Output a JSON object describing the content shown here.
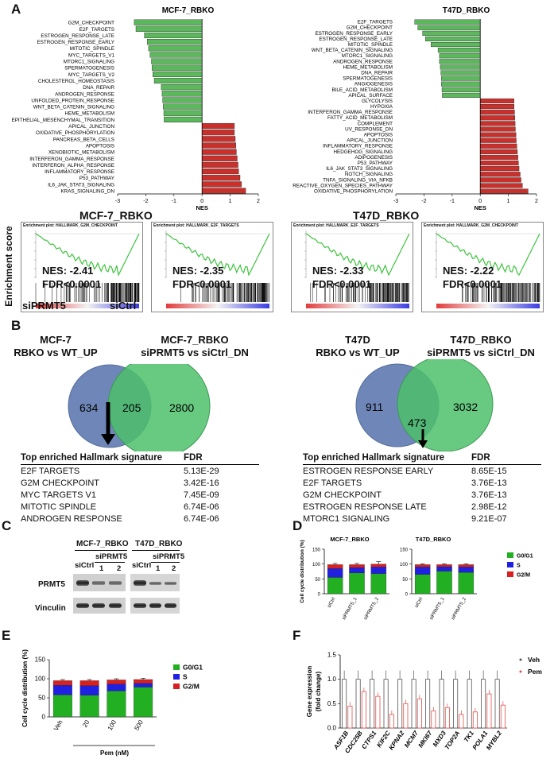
{
  "panels": {
    "A": "A",
    "B": "B",
    "C": "C",
    "D": "D",
    "E": "E",
    "F": "F"
  },
  "panelA": {
    "left": {
      "title": "MCF-7_RBKO",
      "xlabel": "NES",
      "ticks": [
        "-3",
        "-2",
        "-1",
        "0",
        "1",
        "2"
      ],
      "bars": [
        {
          "name": "G2M_CHECKPOINT",
          "nes": -2.41
        },
        {
          "name": "E2F_TARGETS",
          "nes": -2.35
        },
        {
          "name": "ESTROGEN_RESPONSE_LATE",
          "nes": -2.05
        },
        {
          "name": "ESTROGEN_RESPONSE_EARLY",
          "nes": -1.95
        },
        {
          "name": "MITOTIC_SPINDLE",
          "nes": -1.9
        },
        {
          "name": "MYC_TARGETS_V1",
          "nes": -1.85
        },
        {
          "name": "MTORC1_SIGNALING",
          "nes": -1.8
        },
        {
          "name": "SPERMATOGENESIS",
          "nes": -1.78
        },
        {
          "name": "MYC_TARGETS_V2",
          "nes": -1.75
        },
        {
          "name": "CHOLESTEROL_HOMEOSTASIS",
          "nes": -1.7
        },
        {
          "name": "DNA_REPAIR",
          "nes": -1.45
        },
        {
          "name": "ANDROGEN_RESPONSE",
          "nes": -1.42
        },
        {
          "name": "UNFOLDED_PROTEIN_RESPONSE",
          "nes": -1.4
        },
        {
          "name": "WNT_BETA_CATENIN_SIGNALING",
          "nes": -1.38
        },
        {
          "name": "HEME_METABOLISM",
          "nes": -1.36
        },
        {
          "name": "EPITHELIAL_MESENCHYMAL_TRANSITION",
          "nes": -1.35
        },
        {
          "name": "APICAL_JUNCTION",
          "nes": 1.15
        },
        {
          "name": "OXIDATIVE_PHOSPHORYLATION",
          "nes": 1.15
        },
        {
          "name": "PANCREAS_BETA_CELLS",
          "nes": 1.18
        },
        {
          "name": "APOPTOSIS",
          "nes": 1.2
        },
        {
          "name": "XENOBIOTIC_METABOLISM",
          "nes": 1.22
        },
        {
          "name": "INTERFERON_GAMMA_RESPONSE",
          "nes": 1.25
        },
        {
          "name": "INTERFERON_ALPHA_RESPONSE",
          "nes": 1.28
        },
        {
          "name": "INFLAMMATORY_RESPONSE",
          "nes": 1.3
        },
        {
          "name": "P53_PATHWAY",
          "nes": 1.35
        },
        {
          "name": "IL6_JAK_STAT3_SIGNALING",
          "nes": 1.4
        },
        {
          "name": "KRAS_SIGNALING_DN",
          "nes": 1.55
        }
      ]
    },
    "right": {
      "title": "T47D_RBKO",
      "xlabel": "NES",
      "ticks": [
        "-3",
        "-2",
        "-1",
        "0",
        "1",
        "2"
      ],
      "bars": [
        {
          "name": "E2F_TARGETS",
          "nes": -2.33
        },
        {
          "name": "G2M_CHECKPOINT",
          "nes": -2.22
        },
        {
          "name": "ESTROGEN_RESPONSE_EARLY",
          "nes": -2.05
        },
        {
          "name": "ESTROGEN_RESPONSE_LATE",
          "nes": -1.95
        },
        {
          "name": "MITOTIC_SPINDLE",
          "nes": -1.75
        },
        {
          "name": "WNT_BETA_CATENIN_SIGNALING",
          "nes": -1.5
        },
        {
          "name": "MTORC1_SIGNALING",
          "nes": -1.45
        },
        {
          "name": "ANDROGEN_RESPONSE",
          "nes": -1.45
        },
        {
          "name": "HEME_METABOLISM",
          "nes": -1.42
        },
        {
          "name": "DNA_REPAIR",
          "nes": -1.4
        },
        {
          "name": "SPERMATOGENESIS",
          "nes": -1.38
        },
        {
          "name": "ANGIOGENESIS",
          "nes": -1.38
        },
        {
          "name": "BILE_ACID_METABOLISM",
          "nes": -1.36
        },
        {
          "name": "APICAL_SURFACE",
          "nes": -1.35
        },
        {
          "name": "GLYCOLYSIS",
          "nes": 1.2
        },
        {
          "name": "HYPOXIA",
          "nes": 1.2
        },
        {
          "name": "INTERFERON_GAMMA_RESPONSE",
          "nes": 1.22
        },
        {
          "name": "FATTY_ACID_METABOLISM",
          "nes": 1.23
        },
        {
          "name": "COMPLEMENT",
          "nes": 1.24
        },
        {
          "name": "UV_RESPONSE_DN",
          "nes": 1.25
        },
        {
          "name": "APOPTOSIS",
          "nes": 1.27
        },
        {
          "name": "APICAL_JUNCTION",
          "nes": 1.28
        },
        {
          "name": "INFLAMMATORY_RESPONSE",
          "nes": 1.3
        },
        {
          "name": "HEDGEHOG_SIGNALING",
          "nes": 1.32
        },
        {
          "name": "ADIPOGENESIS",
          "nes": 1.34
        },
        {
          "name": "P53_PATHWAY",
          "nes": 1.36
        },
        {
          "name": "IL6_JAK_STAT3_SIGNALING",
          "nes": 1.38
        },
        {
          "name": "NOTCH_SIGNALING",
          "nes": 1.42
        },
        {
          "name": "TNFA_SIGNALING_VIA_NFKB",
          "nes": 1.45
        },
        {
          "name": "REACTIVE_OXYGEN_SPECIES_PATHWAY",
          "nes": 1.5
        },
        {
          "name": "OXIDATIVE_PHOSPHORYLATION",
          "nes": 1.7
        }
      ]
    },
    "gsea": {
      "ylabel": "Enrichment score",
      "title_left": "MCF-7_RBKO",
      "title_right": "T47D_RBKO",
      "label_siPRMT5": "siPRMT5",
      "label_siCtrl": "siCtrl",
      "plots": [
        {
          "title": "Enrichment plot: HALLMARK_G2M_CHECKPOINT",
          "nes": "NES: -2.41",
          "fdr": "FDR<0.0001"
        },
        {
          "title": "Enrichment plot: HALLMARK_E2F_TARGETS",
          "nes": "NES: -2.35",
          "fdr": "FDR<0.0001"
        },
        {
          "title": "Enrichment plot: HALLMARK_E2F_TARGETS",
          "nes": "NES: -2.33",
          "fdr": "FDR<0.0001"
        },
        {
          "title": "Enrichment plot: HALLMARK_G2M_CHECKPOINT",
          "nes": "NES: -2.22",
          "fdr": "FDR<0.0001"
        }
      ]
    }
  },
  "panelB": {
    "left": {
      "title1_line1": "MCF-7",
      "title1_line2": "RBKO vs WT_UP",
      "title2_line1": "MCF-7_RBKO",
      "title2_line2": "siPRMT5 vs siCtrl_DN",
      "only_a": "634",
      "overlap": "205",
      "only_b": "2800",
      "table_head": "Top enriched  Hallmark signature",
      "fdr_head": "FDR",
      "rows": [
        {
          "sig": "E2F TARGETS",
          "fdr": "5.13E-29"
        },
        {
          "sig": "G2M CHECKPOINT",
          "fdr": "3.42E-16"
        },
        {
          "sig": "MYC TARGETS V1",
          "fdr": "7.45E-09"
        },
        {
          "sig": "MITOTIC SPINDLE",
          "fdr": "6.74E-06"
        },
        {
          "sig": "ANDROGEN RESPONSE",
          "fdr": "6.74E-06"
        }
      ]
    },
    "right": {
      "title1_line1": "T47D",
      "title1_line2": "RBKO vs WT_UP",
      "title2_line1": "T47D_RBKO",
      "title2_line2": "siPRMT5 vs siCtrl_DN",
      "only_a": "911",
      "overlap": "473",
      "only_b": "3032",
      "table_head": "Top enriched  Hallmark  signature",
      "fdr_head": "FDR",
      "rows": [
        {
          "sig": "ESTROGEN RESPONSE EARLY",
          "fdr": "8.65E-15"
        },
        {
          "sig": "E2F TARGETS",
          "fdr": "3.76E-13"
        },
        {
          "sig": "G2M CHECKPOINT",
          "fdr": "3.76E-13"
        },
        {
          "sig": "ESTROGEN RESPONSE LATE",
          "fdr": "2.98E-12"
        },
        {
          "sig": "MTORC1 SIGNALING",
          "fdr": "9.21E-07"
        }
      ]
    }
  },
  "panelC": {
    "mcf7": "MCF-7_RBKO",
    "t47d": "T47D_RBKO",
    "siPRMT5": "siPRMT5",
    "siCtrl": "siCtrl",
    "lane1": "1",
    "lane2": "2",
    "prmt5": "PRMT5",
    "vinculin": "Vinculin"
  },
  "chart_data": [
    {
      "type": "bar",
      "title": "MCF-7_RBKO",
      "ylabel": "Cell cycle distribution (%)",
      "ylim": [
        0,
        150
      ],
      "yticks": [
        "0",
        "50",
        "100",
        "150"
      ],
      "categories": [
        "siCtrl",
        "siPRMT5_1",
        "siPRMT5_2"
      ],
      "stacked": true,
      "series": [
        {
          "name": "G0/G1",
          "values": [
            55,
            70,
            68
          ]
        },
        {
          "name": "S",
          "values": [
            30,
            18,
            22
          ]
        },
        {
          "name": "G2/M",
          "values": [
            13,
            10,
            10
          ]
        }
      ],
      "errors": [
        4,
        4,
        8
      ]
    },
    {
      "type": "bar",
      "title": "T47D_RBKO",
      "ylim": [
        0,
        150
      ],
      "yticks": [
        "0",
        "50",
        "100",
        "150"
      ],
      "categories": [
        "siCtrl",
        "siPRMT5_1",
        "siPRMT5_2"
      ],
      "stacked": true,
      "series": [
        {
          "name": "G0/G1",
          "values": [
            65,
            76,
            72
          ]
        },
        {
          "name": "S",
          "values": [
            25,
            15,
            18
          ]
        },
        {
          "name": "G2/M",
          "values": [
            8,
            7,
            8
          ]
        }
      ],
      "errors": [
        3,
        3,
        3
      ],
      "legend": [
        "G0/G1",
        "S",
        "G2/M"
      ]
    },
    {
      "type": "bar",
      "ylabel": "Cell cycle distribution (%)",
      "xlabel": "Pem (nM)",
      "ylim": [
        0,
        150
      ],
      "yticks": [
        "0",
        "50",
        "100",
        "150"
      ],
      "categories": [
        "Veh",
        "20",
        "100",
        "500"
      ],
      "stacked": true,
      "series": [
        {
          "name": "G0/G1",
          "values": [
            58,
            57,
            68,
            78
          ]
        },
        {
          "name": "S",
          "values": [
            25,
            25,
            18,
            10
          ]
        },
        {
          "name": "G2/M",
          "values": [
            12,
            13,
            11,
            10
          ]
        }
      ],
      "errors": [
        3,
        3,
        3,
        3
      ],
      "legend": [
        "G0/G1",
        "S",
        "G2/M"
      ]
    },
    {
      "type": "bar",
      "ylabel": "Gene expression\n(fold change)",
      "ylim": [
        0,
        1.5
      ],
      "yticks": [
        "0.0",
        "0.5",
        "1.0",
        "1.5"
      ],
      "categories": [
        "ASF1B",
        "CDC25B",
        "CTPS1",
        "KIF2C",
        "KPNA2",
        "MCM7",
        "MKI67",
        "MXD3",
        "TOP2A",
        "TK1",
        "POLA1",
        "MYBL2"
      ],
      "series": [
        {
          "name": "Veh",
          "values": [
            1,
            1,
            1,
            1,
            1,
            1,
            1,
            1,
            1,
            1,
            1,
            1
          ]
        },
        {
          "name": "Pem",
          "values": [
            0.45,
            0.75,
            0.65,
            0.28,
            0.5,
            0.6,
            0.35,
            0.42,
            0.28,
            0.33,
            0.7,
            0.47
          ]
        }
      ],
      "legend": [
        "Veh",
        "Pem"
      ]
    }
  ]
}
